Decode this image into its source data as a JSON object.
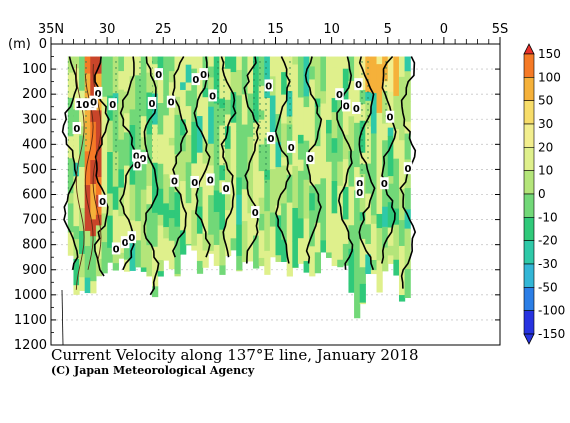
{
  "chart_data": {
    "type": "heatmap",
    "title": "Current Velocity along 137°E line, January 2018",
    "credit": "(C) Japan Meteorological Agency",
    "y_unit_label": "(m)",
    "x_axis": {
      "ticks": [
        {
          "value": 35,
          "label": "35N"
        },
        {
          "value": 30,
          "label": "30"
        },
        {
          "value": 25,
          "label": "25"
        },
        {
          "value": 20,
          "label": "20"
        },
        {
          "value": 15,
          "label": "15"
        },
        {
          "value": 10,
          "label": "10"
        },
        {
          "value": 5,
          "label": "5"
        },
        {
          "value": 0,
          "label": "0"
        },
        {
          "value": -5,
          "label": "5S"
        }
      ],
      "range": [
        35,
        -5
      ]
    },
    "y_axis": {
      "ticks": [
        0,
        100,
        200,
        300,
        400,
        500,
        600,
        700,
        800,
        900,
        1000,
        1100,
        1200
      ],
      "range": [
        0,
        1200
      ],
      "inverted": true,
      "grid": true
    },
    "colorbar": {
      "labels": [
        150,
        100,
        50,
        30,
        20,
        10,
        0,
        -10,
        -20,
        -30,
        -50,
        -100,
        -150
      ],
      "colors": [
        "#e8302a",
        "#f57a26",
        "#f5b13a",
        "#f7dd6a",
        "#f2ee8e",
        "#dff08c",
        "#b4e57a",
        "#72d878",
        "#30c97a",
        "#2fc9a8",
        "#33b6d6",
        "#2b7ee6",
        "#2733e0"
      ]
    },
    "contour_labels": [
      {
        "lat": 31.9,
        "depth": 240,
        "text": "100"
      },
      {
        "lat": 32.7,
        "depth": 335,
        "text": "0"
      },
      {
        "lat": 30.8,
        "depth": 195,
        "text": "0"
      },
      {
        "lat": 31.2,
        "depth": 230,
        "text": "0"
      },
      {
        "lat": 29.5,
        "depth": 240,
        "text": "0"
      },
      {
        "lat": 30.4,
        "depth": 625,
        "text": "0"
      },
      {
        "lat": 29.2,
        "depth": 815,
        "text": "0"
      },
      {
        "lat": 28.4,
        "depth": 790,
        "text": "0"
      },
      {
        "lat": 27.8,
        "depth": 770,
        "text": "0"
      },
      {
        "lat": 27.4,
        "depth": 445,
        "text": "0"
      },
      {
        "lat": 26.8,
        "depth": 455,
        "text": "0"
      },
      {
        "lat": 27.3,
        "depth": 480,
        "text": "0"
      },
      {
        "lat": 26.0,
        "depth": 235,
        "text": "0"
      },
      {
        "lat": 25.4,
        "depth": 120,
        "text": "0"
      },
      {
        "lat": 24.3,
        "depth": 230,
        "text": "0"
      },
      {
        "lat": 24.0,
        "depth": 545,
        "text": "0"
      },
      {
        "lat": 22.1,
        "depth": 140,
        "text": "0"
      },
      {
        "lat": 21.4,
        "depth": 120,
        "text": "0"
      },
      {
        "lat": 20.6,
        "depth": 205,
        "text": "0"
      },
      {
        "lat": 20.8,
        "depth": 540,
        "text": "0"
      },
      {
        "lat": 22.2,
        "depth": 550,
        "text": "0"
      },
      {
        "lat": 19.4,
        "depth": 575,
        "text": "0"
      },
      {
        "lat": 16.8,
        "depth": 670,
        "text": "0"
      },
      {
        "lat": 15.6,
        "depth": 165,
        "text": "0"
      },
      {
        "lat": 15.4,
        "depth": 375,
        "text": "0"
      },
      {
        "lat": 13.6,
        "depth": 410,
        "text": "0"
      },
      {
        "lat": 11.9,
        "depth": 455,
        "text": "0"
      },
      {
        "lat": 9.3,
        "depth": 200,
        "text": "0"
      },
      {
        "lat": 8.7,
        "depth": 245,
        "text": "0"
      },
      {
        "lat": 7.6,
        "depth": 160,
        "text": "0"
      },
      {
        "lat": 7.8,
        "depth": 255,
        "text": "0"
      },
      {
        "lat": 7.5,
        "depth": 555,
        "text": "0"
      },
      {
        "lat": 7.5,
        "depth": 590,
        "text": "0"
      },
      {
        "lat": 5.3,
        "depth": 555,
        "text": "0"
      },
      {
        "lat": 4.8,
        "depth": 290,
        "text": "0"
      },
      {
        "lat": 3.2,
        "depth": 495,
        "text": "0"
      }
    ],
    "depth_profile_bottom": [
      {
        "lat": 33.8,
        "depth": 820
      },
      {
        "lat": 33.0,
        "depth": 960
      },
      {
        "lat": 32.0,
        "depth": 1020
      },
      {
        "lat": 31.0,
        "depth": 950
      },
      {
        "lat": 30.0,
        "depth": 900
      },
      {
        "lat": 29.0,
        "depth": 880
      },
      {
        "lat": 28.0,
        "depth": 920
      },
      {
        "lat": 27.0,
        "depth": 880
      },
      {
        "lat": 26.0,
        "depth": 1010
      },
      {
        "lat": 25.0,
        "depth": 860
      },
      {
        "lat": 24.0,
        "depth": 900
      },
      {
        "lat": 23.0,
        "depth": 840
      },
      {
        "lat": 22.0,
        "depth": 880
      },
      {
        "lat": 21.0,
        "depth": 860
      },
      {
        "lat": 20.0,
        "depth": 880
      },
      {
        "lat": 19.0,
        "depth": 860
      },
      {
        "lat": 18.0,
        "depth": 880
      },
      {
        "lat": 17.0,
        "depth": 900
      },
      {
        "lat": 16.0,
        "depth": 900
      },
      {
        "lat": 15.0,
        "depth": 840
      },
      {
        "lat": 14.0,
        "depth": 900
      },
      {
        "lat": 13.0,
        "depth": 880
      },
      {
        "lat": 12.0,
        "depth": 900
      },
      {
        "lat": 11.0,
        "depth": 860
      },
      {
        "lat": 10.0,
        "depth": 900
      },
      {
        "lat": 9.0,
        "depth": 880
      },
      {
        "lat": 8.0,
        "depth": 1080
      },
      {
        "lat": 7.0,
        "depth": 920
      },
      {
        "lat": 6.0,
        "depth": 960
      },
      {
        "lat": 5.0,
        "depth": 880
      },
      {
        "lat": 4.0,
        "depth": 1000
      },
      {
        "lat": 3.2,
        "depth": 980
      }
    ],
    "data_lat_range": [
      34.0,
      3.0
    ]
  }
}
